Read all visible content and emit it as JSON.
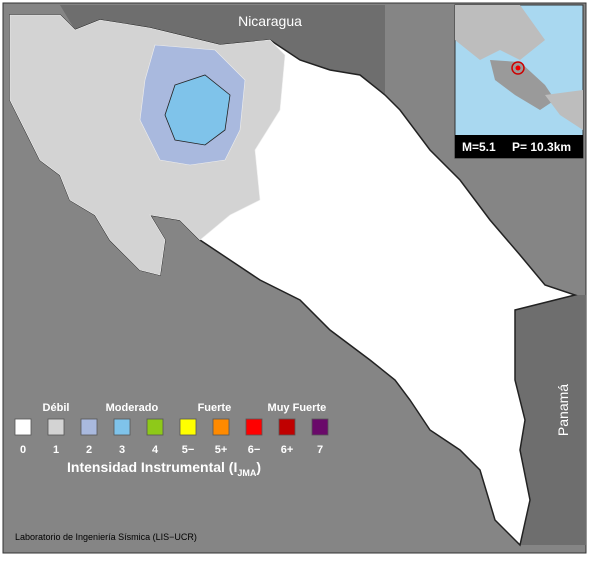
{
  "map": {
    "countries": {
      "north": "Nicaragua",
      "south": "Panamá"
    },
    "inset": {
      "magnitude": "M=5.1",
      "depth": "P= 10.3km"
    },
    "legend": {
      "groups": [
        "Débil",
        "Moderado",
        "Fuerte",
        "Muy Fuerte"
      ],
      "items": [
        {
          "label": "0",
          "color": "#ffffff"
        },
        {
          "label": "1",
          "color": "#d3d3d3"
        },
        {
          "label": "2",
          "color": "#a9b9de"
        },
        {
          "label": "3",
          "color": "#7fc3ea"
        },
        {
          "label": "4",
          "color": "#8ec919"
        },
        {
          "label": "5−",
          "color": "#ffff00"
        },
        {
          "label": "5+",
          "color": "#ff8a00"
        },
        {
          "label": "6−",
          "color": "#ff0000"
        },
        {
          "label": "6+",
          "color": "#c00000"
        },
        {
          "label": "7",
          "color": "#6a0a6a"
        }
      ],
      "title": {
        "text": "Intensidad Instrumental (I",
        "subscript": "JMA",
        "close": ")"
      }
    },
    "credit": "Laboratorio de Ingeniería Sísmica (LIS−UCR)"
  }
}
